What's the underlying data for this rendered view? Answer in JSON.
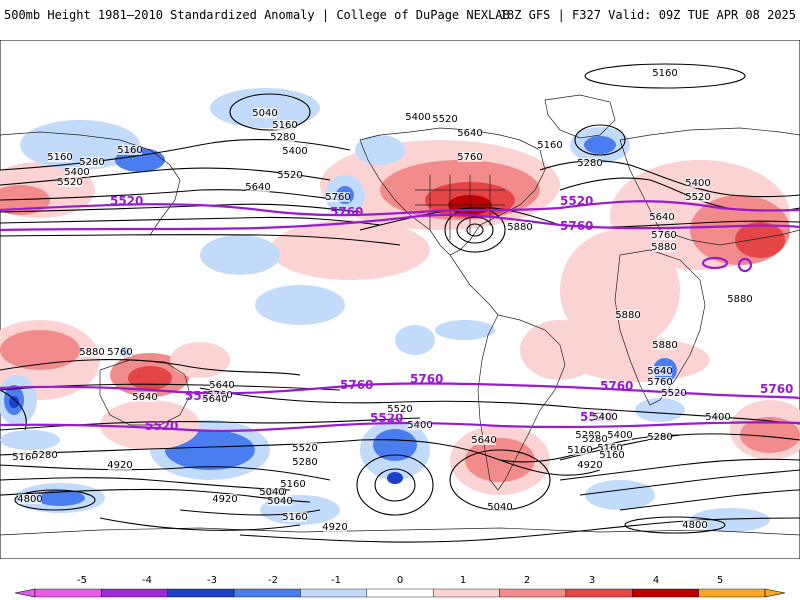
{
  "header": {
    "left_title": "500mb Height 1981–2010 Standardized Anomaly | College of DuPage NEXLAB",
    "right_title": "18Z GFS | F327 Valid: 09Z TUE APR 08 2025"
  },
  "colors": {
    "neg5": "#e65ce6",
    "neg4": "#9a2bd6",
    "neg3": "#1e3fc8",
    "neg2": "#4a7ef0",
    "neg1": "#c3dbfa",
    "zero": "#ffffff",
    "pos1": "#fbd3d3",
    "pos2": "#f28b8b",
    "pos3": "#e64545",
    "pos4": "#c00000",
    "pos5": "#f5a623",
    "purple_contour": "#9a1ad0",
    "black_contour": "#000000"
  },
  "colorbar": {
    "ticks": [
      "-5",
      "-4",
      "-3",
      "-2",
      "-1",
      "0",
      "1",
      "2",
      "3",
      "4",
      "5"
    ]
  },
  "contour_labels": {
    "purple": [
      "5520",
      "5520",
      "5760",
      "5760",
      "5520",
      "5760",
      "5760",
      "5760",
      "5760",
      "5520",
      "5520",
      "5520"
    ],
    "black": [
      "5160",
      "5040",
      "5160",
      "5280",
      "5400",
      "5520",
      "5640",
      "5760",
      "5160",
      "5280",
      "5400",
      "5520",
      "5160",
      "5400",
      "5520",
      "5640",
      "5760",
      "5160",
      "5280",
      "5400",
      "5520",
      "5640",
      "5760",
      "5880",
      "5880",
      "5880",
      "5880",
      "5880",
      "5880",
      "5760",
      "5640",
      "5760",
      "5640",
      "5520",
      "5400",
      "5520",
      "5280",
      "5160",
      "5040",
      "4920",
      "5160",
      "5280",
      "4920",
      "5040",
      "5160",
      "5280",
      "5400",
      "5640",
      "5040",
      "5280",
      "5160",
      "5400",
      "4920",
      "4800",
      "4920",
      "4800",
      "5640",
      "5760",
      "5520",
      "5400",
      "5160",
      "5280",
      "5040",
      "5160",
      "5640"
    ]
  }
}
